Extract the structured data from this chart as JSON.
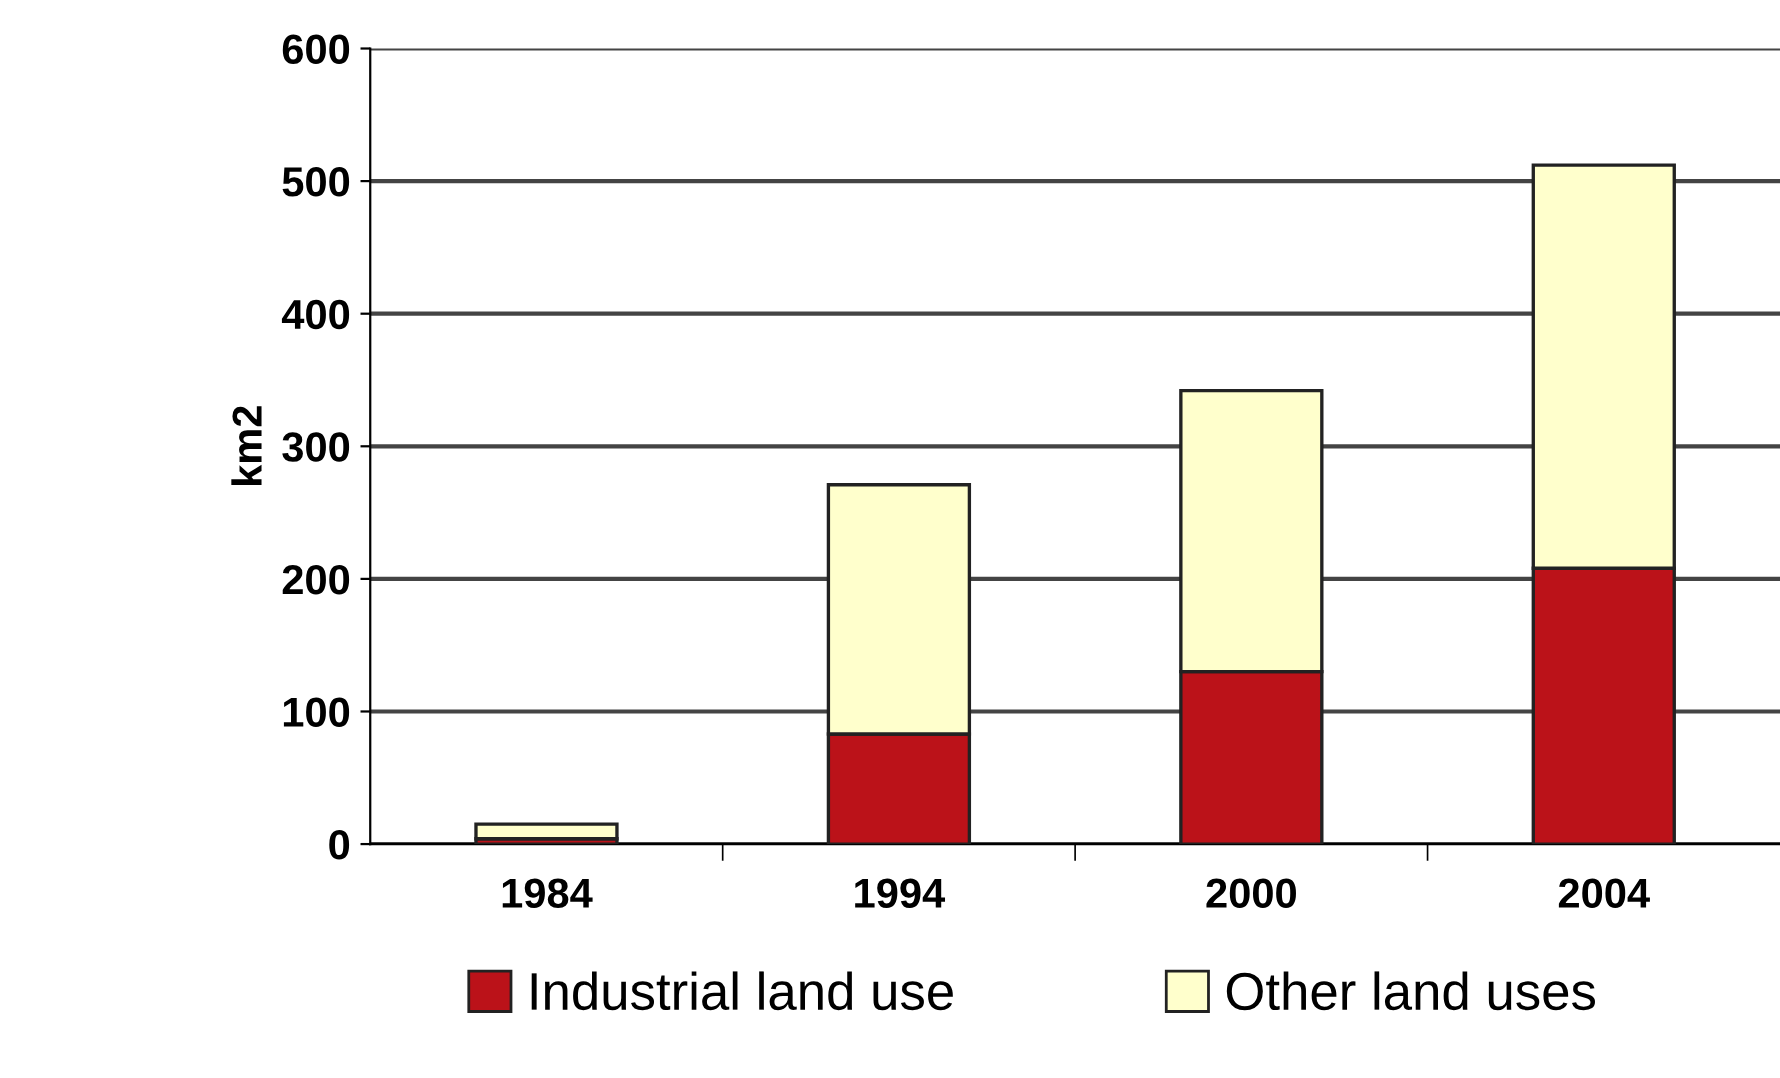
{
  "chart_data": {
    "type": "bar",
    "stacked": true,
    "ylabel": "km2",
    "categories": [
      "1984",
      "1994",
      "2000",
      "2004"
    ],
    "series": [
      {
        "name": "Industrial land use",
        "color": "#bb1219",
        "values": [
          4,
          83,
          130,
          208
        ]
      },
      {
        "name": "Other land uses",
        "color": "#ffffcc",
        "values": [
          11,
          188,
          212,
          304
        ]
      }
    ],
    "ylim": [
      0,
      600
    ],
    "yticks": [
      0,
      100,
      200,
      300,
      400,
      500,
      600
    ],
    "grid": "y",
    "legend": "bottom"
  }
}
